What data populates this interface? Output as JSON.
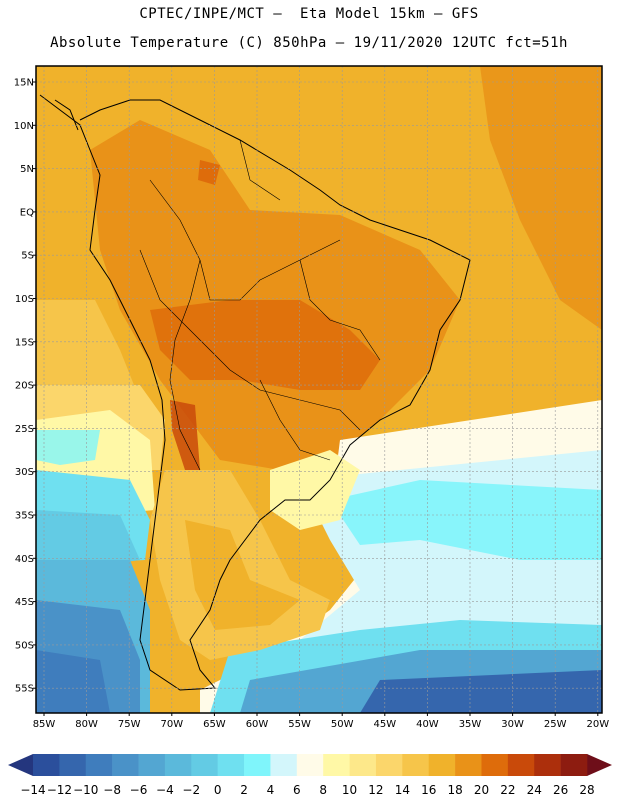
{
  "header": {
    "line1": "CPTEC/INPE/MCT –  Eta Model 15km – GFS",
    "line2": "Absolute Temperature (C) 850hPa – 19/11/2020 12UTC fct=51h"
  },
  "map": {
    "lat_labels": [
      "15N",
      "10N",
      "5N",
      "EQ",
      "5S",
      "10S",
      "15S",
      "20S",
      "25S",
      "30S",
      "35S",
      "40S",
      "45S",
      "50S",
      "55S"
    ],
    "lon_labels": [
      "85W",
      "80W",
      "75W",
      "70W",
      "65W",
      "60W",
      "55W",
      "50W",
      "45W",
      "40W",
      "35W",
      "30W",
      "25W",
      "20W"
    ]
  },
  "colorbar": {
    "labels": [
      "-14",
      "-12",
      "-10",
      "-8",
      "-6",
      "-4",
      "-2",
      "0",
      "2",
      "4",
      "6",
      "8",
      "10",
      "12",
      "14",
      "16",
      "18",
      "20",
      "22",
      "24",
      "26",
      "28"
    ],
    "colors": [
      "#2b4f9c",
      "#3566ad",
      "#3f7dbd",
      "#4a92c8",
      "#53a6d2",
      "#5bb9db",
      "#63cbe4",
      "#6fe0f0",
      "#7ff5fb",
      "#d3f6fb",
      "#fffbe8",
      "#fff8a6",
      "#fde88a",
      "#fbd66b",
      "#f6c54a",
      "#f0b22b",
      "#e99218",
      "#de6c0b",
      "#c94a0a",
      "#ac2f0c",
      "#8d1c10"
    ],
    "arrow_left": "#24367e",
    "arrow_right": "#6e0e19"
  }
}
